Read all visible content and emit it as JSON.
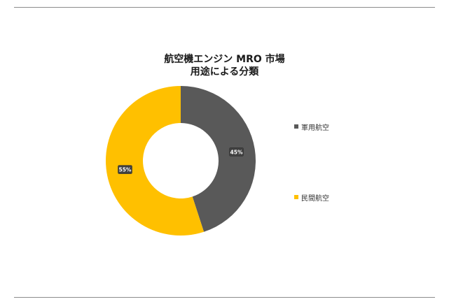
{
  "chart_data": {
    "type": "pie",
    "subtype": "donut",
    "title_line1": "航空機エンジン MRO 市場",
    "title_line2": "用途による分類",
    "categories": [
      "軍用航空",
      "民間航空"
    ],
    "values": [
      45,
      55
    ],
    "labels": [
      "45%",
      "55%"
    ],
    "colors": [
      "#595959",
      "#ffc000"
    ],
    "legend_position": "right",
    "grid": false
  }
}
